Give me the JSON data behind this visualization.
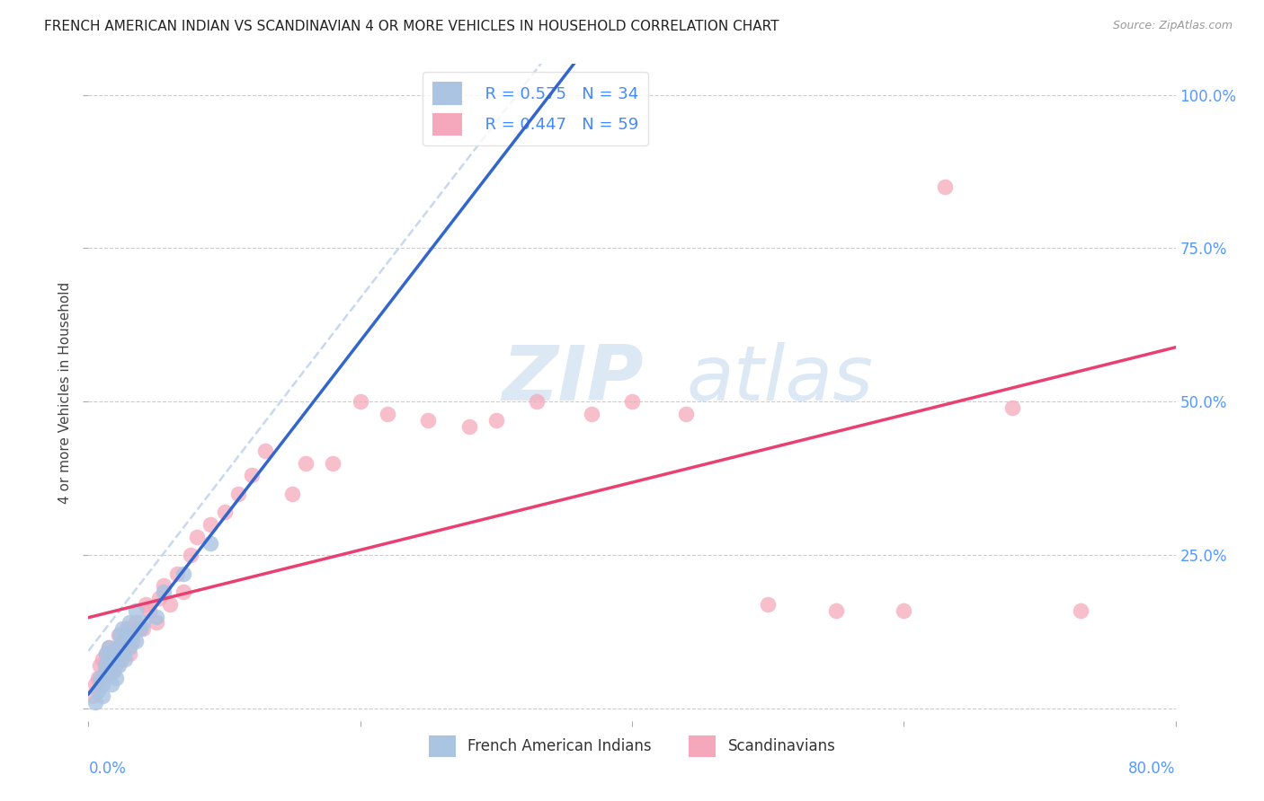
{
  "title": "FRENCH AMERICAN INDIAN VS SCANDINAVIAN 4 OR MORE VEHICLES IN HOUSEHOLD CORRELATION CHART",
  "source": "Source: ZipAtlas.com",
  "ylabel": "4 or more Vehicles in Household",
  "legend_R_blue": "R = 0.575",
  "legend_N_blue": "N = 34",
  "legend_R_pink": "R = 0.447",
  "legend_N_pink": "N = 59",
  "legend_label_blue": "French American Indians",
  "legend_label_pink": "Scandinavians",
  "blue_color": "#aac4e2",
  "blue_line_color": "#3366cc",
  "pink_color": "#f5a8bc",
  "pink_line_color": "#e84070",
  "dashed_color": "#c8d8ee",
  "grid_color": "#cccccc",
  "xlim": [
    0.0,
    0.8
  ],
  "ylim": [
    -0.02,
    1.05
  ],
  "plot_ylim": [
    0.0,
    1.0
  ],
  "ytick_positions": [
    0.0,
    0.25,
    0.5,
    0.75,
    1.0
  ],
  "ytick_labels_right": [
    "",
    "25.0%",
    "50.0%",
    "75.0%",
    "100.0%"
  ],
  "xtick_positions": [
    0.0,
    0.2,
    0.4,
    0.6,
    0.8
  ],
  "blue_scatter_x": [
    0.005,
    0.007,
    0.008,
    0.01,
    0.01,
    0.012,
    0.012,
    0.013,
    0.015,
    0.015,
    0.017,
    0.018,
    0.018,
    0.02,
    0.02,
    0.022,
    0.022,
    0.023,
    0.025,
    0.025,
    0.025,
    0.027,
    0.028,
    0.03,
    0.03,
    0.032,
    0.035,
    0.035,
    0.038,
    0.04,
    0.05,
    0.055,
    0.07,
    0.09
  ],
  "blue_scatter_y": [
    0.01,
    0.03,
    0.05,
    0.02,
    0.04,
    0.06,
    0.07,
    0.09,
    0.08,
    0.1,
    0.04,
    0.06,
    0.08,
    0.05,
    0.08,
    0.07,
    0.1,
    0.12,
    0.09,
    0.11,
    0.13,
    0.08,
    0.12,
    0.1,
    0.14,
    0.12,
    0.11,
    0.16,
    0.13,
    0.14,
    0.15,
    0.19,
    0.22,
    0.27
  ],
  "pink_scatter_x": [
    0.003,
    0.005,
    0.007,
    0.008,
    0.01,
    0.01,
    0.012,
    0.013,
    0.015,
    0.015,
    0.017,
    0.018,
    0.02,
    0.02,
    0.022,
    0.022,
    0.024,
    0.025,
    0.027,
    0.028,
    0.03,
    0.03,
    0.032,
    0.035,
    0.037,
    0.04,
    0.042,
    0.045,
    0.05,
    0.052,
    0.055,
    0.06,
    0.065,
    0.07,
    0.075,
    0.08,
    0.09,
    0.1,
    0.11,
    0.12,
    0.13,
    0.15,
    0.16,
    0.18,
    0.2,
    0.22,
    0.25,
    0.28,
    0.3,
    0.33,
    0.37,
    0.4,
    0.44,
    0.5,
    0.55,
    0.6,
    0.63,
    0.68,
    0.73
  ],
  "pink_scatter_y": [
    0.02,
    0.04,
    0.05,
    0.07,
    0.05,
    0.08,
    0.06,
    0.09,
    0.07,
    0.1,
    0.06,
    0.09,
    0.07,
    0.1,
    0.09,
    0.12,
    0.08,
    0.11,
    0.1,
    0.13,
    0.09,
    0.12,
    0.11,
    0.14,
    0.13,
    0.13,
    0.17,
    0.16,
    0.14,
    0.18,
    0.2,
    0.17,
    0.22,
    0.19,
    0.25,
    0.28,
    0.3,
    0.32,
    0.35,
    0.38,
    0.42,
    0.35,
    0.4,
    0.4,
    0.5,
    0.48,
    0.47,
    0.46,
    0.47,
    0.5,
    0.48,
    0.5,
    0.48,
    0.17,
    0.16,
    0.16,
    0.85,
    0.49,
    0.16
  ]
}
